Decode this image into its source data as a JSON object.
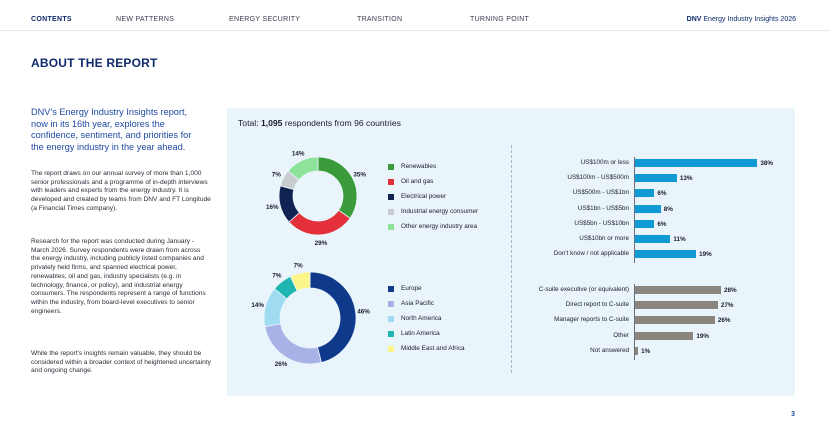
{
  "nav": {
    "items": [
      "CONTENTS",
      "NEW PATTERNS",
      "ENERGY SECURITY",
      "TRANSITION",
      "TURNING POINT"
    ],
    "brand_bold": "DNV",
    "brand_rest": " Energy Industry Insights 2026"
  },
  "heading": "ABOUT THE REPORT",
  "lead": "DNV’s Energy Industry Insights report, now in its 16th year, explores the confidence, sentiment, and priorities for the energy industry in the year ahead.",
  "paragraphs": [
    "The report draws on our annual survey of more than 1,000 senior professionals and a programme of in-depth interviews with leaders and experts from the energy industry. It is developed and created by teams from DNV and FT Longitude (a Financial Times company).",
    "Research for the report was conducted during January - March 2026. Survey respondents were drawn from across the energy industry, including publicly listed companies and privately held firms, and spanned electrical power, renewables, oil and gas, industry specialists (e.g. in technology, finance, or policy), and industrial energy consumers. The respondents represent a range of functions within the industry, from board-level executives to senior engineers.",
    "While the report’s insights remain valuable, they should be considered within a broader context of heightened uncertainty and ongoing change."
  ],
  "panel": {
    "title_prefix": "Total: ",
    "title_bold": "1,095",
    "title_suffix": " respondents from 96 countries"
  },
  "page_number": "3",
  "chart_data": [
    {
      "type": "pie",
      "variant": "donut",
      "title": "",
      "categories": [
        "Renewables",
        "Oil and gas",
        "Electrical power",
        "Industrial energy consumer",
        "Other energy industry area"
      ],
      "values": [
        35,
        29,
        16,
        7,
        14
      ],
      "labels": [
        "35%",
        "29%",
        "16%",
        "7%",
        "14%"
      ],
      "colors": [
        "#3a9b3a",
        "#e3303a",
        "#0f2252",
        "#c9cccf",
        "#8ee39a"
      ],
      "legend": "right"
    },
    {
      "type": "pie",
      "variant": "donut",
      "title": "",
      "categories": [
        "Europe",
        "Asia Pacific",
        "North America",
        "Latin America",
        "Middle East and Africa"
      ],
      "values": [
        46,
        26,
        14,
        7,
        7
      ],
      "labels": [
        "46%",
        "26%",
        "14%",
        "7%",
        "7%"
      ],
      "colors": [
        "#0f3a8c",
        "#a9b2e6",
        "#9fdcf2",
        "#1fb5b0",
        "#fbf58a"
      ],
      "legend": "right"
    },
    {
      "type": "bar",
      "orientation": "horizontal",
      "title": "",
      "categories": [
        "US$100m or less",
        "US$100m - US$500m",
        "US$500m - US$1bn",
        "US$1bn - US$5bn",
        "US$5bn - US$10bn",
        "US$10bn or more",
        "Don’t know / not applicable"
      ],
      "values": [
        38,
        13,
        6,
        8,
        6,
        11,
        19
      ],
      "labels": [
        "38%",
        "13%",
        "6%",
        "8%",
        "6%",
        "11%",
        "19%"
      ],
      "color": "#0f9ad6"
    },
    {
      "type": "bar",
      "orientation": "horizontal",
      "title": "",
      "categories": [
        "C-suite executive (or equivalent)",
        "Direct report to C-suite",
        "Manager reports to C-suite",
        "Other",
        "Not answered"
      ],
      "values": [
        28,
        27,
        26,
        19,
        1
      ],
      "labels": [
        "28%",
        "27%",
        "26%",
        "19%",
        "1%"
      ],
      "color": "#8b8580"
    }
  ]
}
